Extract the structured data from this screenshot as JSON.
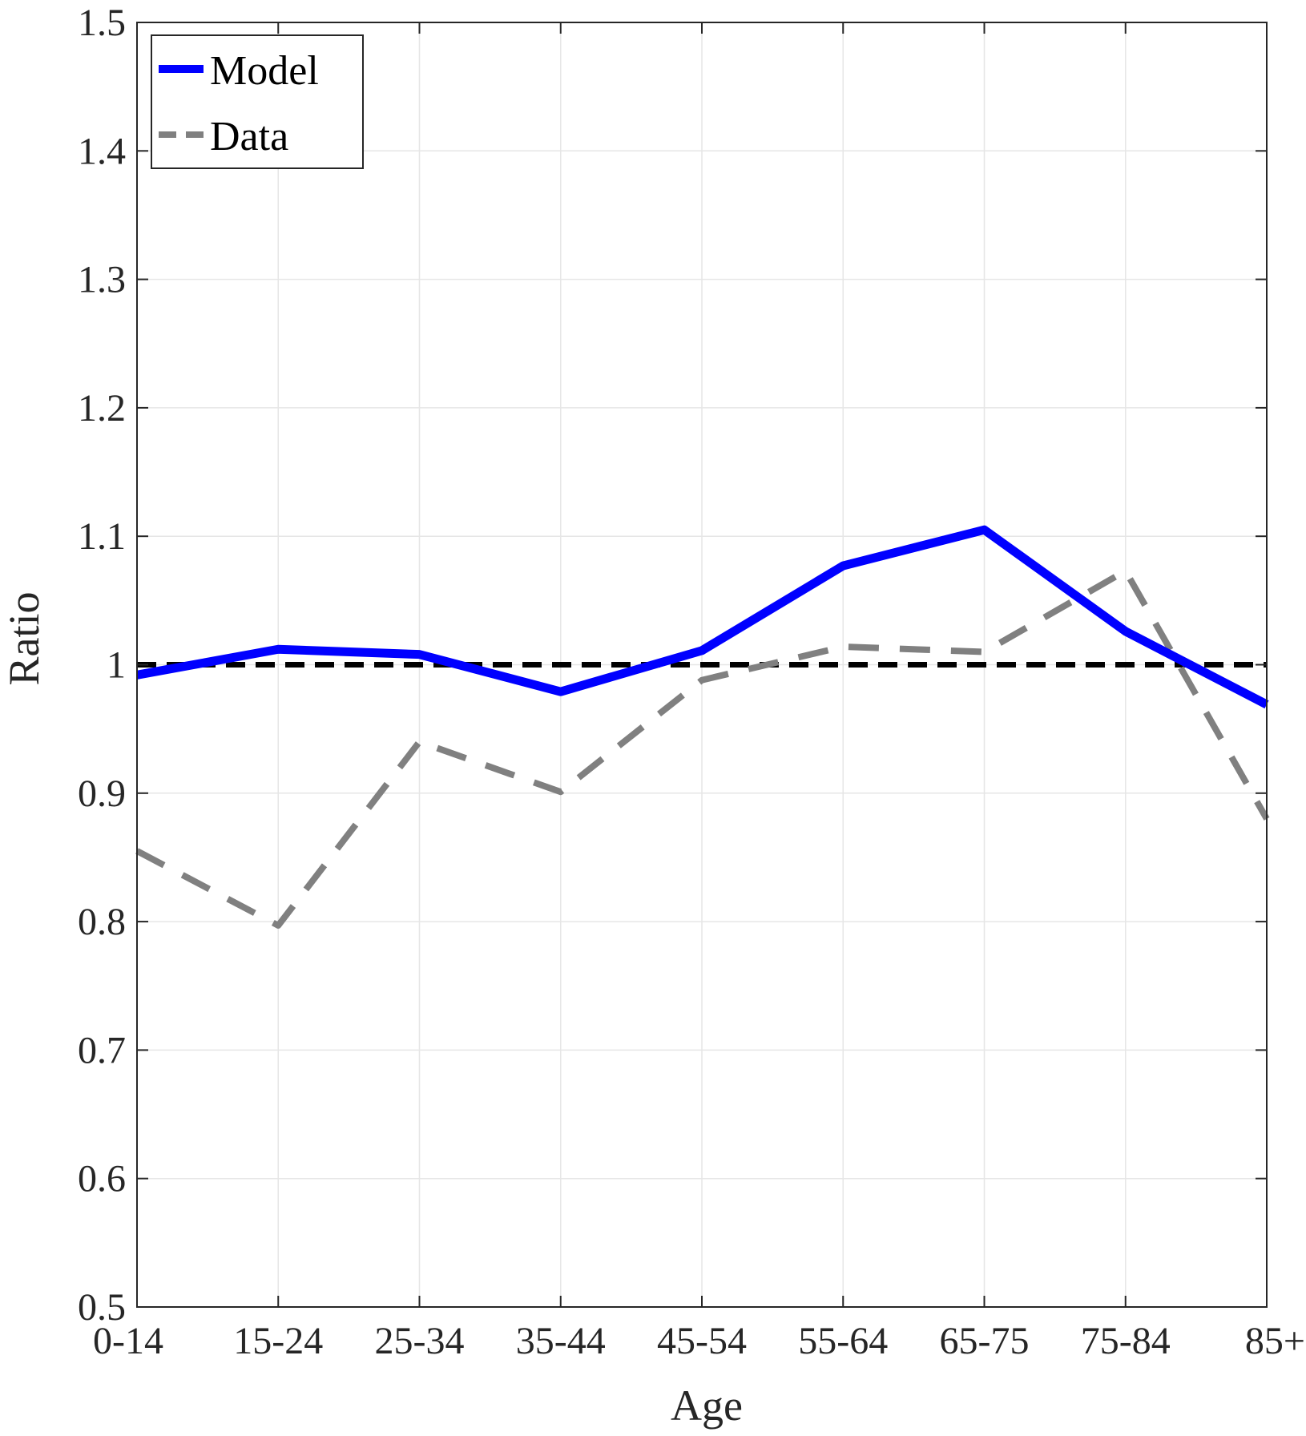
{
  "chart_data": {
    "type": "line",
    "categories": [
      "0-14",
      "15-24",
      "25-34",
      "35-44",
      "45-54",
      "55-64",
      "65-75",
      "75-84",
      "85+"
    ],
    "series": [
      {
        "name": "Model",
        "values": [
          0.992,
          1.012,
          1.008,
          0.979,
          1.011,
          1.077,
          1.105,
          1.026,
          0.969
        ],
        "color": "#0000ff",
        "style": "solid"
      },
      {
        "name": "Data",
        "values": [
          0.855,
          0.797,
          0.94,
          0.901,
          0.988,
          1.014,
          1.01,
          1.073,
          0.88
        ],
        "color": "#808080",
        "style": "dashed"
      }
    ],
    "reference_line": {
      "y": 1,
      "color": "#000000",
      "style": "dashed"
    },
    "xlabel": "Age",
    "ylabel": "Ratio",
    "ylim": [
      0.5,
      1.5
    ],
    "yticks": [
      "0.5",
      "0.6",
      "0.7",
      "0.8",
      "0.9",
      "1",
      "1.1",
      "1.2",
      "1.3",
      "1.4",
      "1.5"
    ],
    "grid": true,
    "legend": "top-left"
  }
}
